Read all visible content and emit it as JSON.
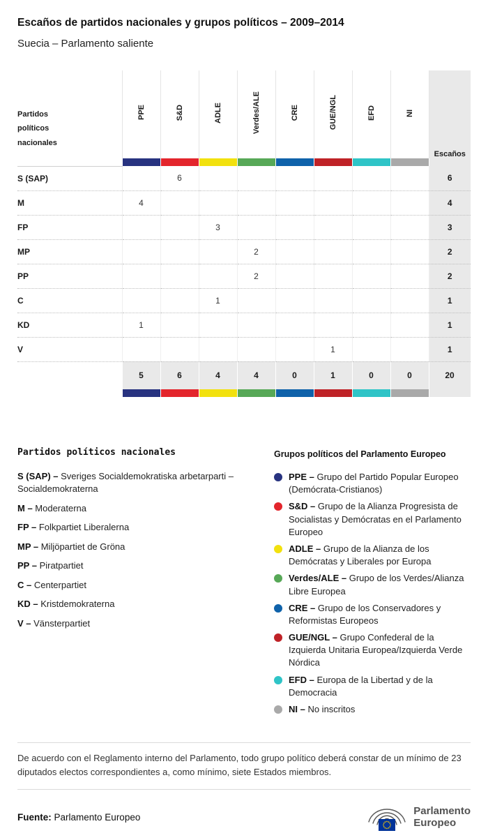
{
  "header": {
    "title": "Escaños de partidos nacionales y grupos políticos – 2009–2014",
    "subtitle": "Suecia – Parlamento saliente"
  },
  "chart_data": {
    "type": "table",
    "title": "Escaños de partidos nacionales y grupos políticos – 2009–2014",
    "subtitle": "Suecia – Parlamento saliente",
    "corner_label": "Partidos políticos nacionales",
    "seats_label": "Escaños",
    "groups": [
      {
        "label": "PPE",
        "color": "#283380"
      },
      {
        "label": "S&D",
        "color": "#e3252c"
      },
      {
        "label": "ADLE",
        "color": "#f2e10e"
      },
      {
        "label": "Verdes/ALE",
        "color": "#57a857"
      },
      {
        "label": "CRE",
        "color": "#0f62aa"
      },
      {
        "label": "GUE/NGL",
        "color": "#bf2227"
      },
      {
        "label": "EFD",
        "color": "#2fc4c7"
      },
      {
        "label": "NI",
        "color": "#a9a9a9"
      }
    ],
    "rows": [
      {
        "party": "S (SAP)",
        "values": [
          "",
          "6",
          "",
          "",
          "",
          "",
          "",
          ""
        ],
        "total": "6"
      },
      {
        "party": "M",
        "values": [
          "4",
          "",
          "",
          "",
          "",
          "",
          "",
          ""
        ],
        "total": "4"
      },
      {
        "party": "FP",
        "values": [
          "",
          "",
          "3",
          "",
          "",
          "",
          "",
          ""
        ],
        "total": "3"
      },
      {
        "party": "MP",
        "values": [
          "",
          "",
          "",
          "2",
          "",
          "",
          "",
          ""
        ],
        "total": "2"
      },
      {
        "party": "PP",
        "values": [
          "",
          "",
          "",
          "2",
          "",
          "",
          "",
          ""
        ],
        "total": "2"
      },
      {
        "party": "C",
        "values": [
          "",
          "",
          "1",
          "",
          "",
          "",
          "",
          ""
        ],
        "total": "1"
      },
      {
        "party": "KD",
        "values": [
          "1",
          "",
          "",
          "",
          "",
          "",
          "",
          ""
        ],
        "total": "1"
      },
      {
        "party": "V",
        "values": [
          "",
          "",
          "",
          "",
          "",
          "1",
          "",
          ""
        ],
        "total": "1"
      }
    ],
    "totals": {
      "values": [
        "5",
        "6",
        "4",
        "4",
        "0",
        "1",
        "0",
        "0"
      ],
      "total": "20"
    }
  },
  "legend_parties": {
    "heading": "Partidos políticos nacionales",
    "items": [
      {
        "code": "S (SAP) –",
        "text": "Sveriges Socialdemokratiska arbetarparti – Socialdemokraterna"
      },
      {
        "code": "M –",
        "text": "Moderaterna"
      },
      {
        "code": "FP –",
        "text": "Folkpartiet Liberalerna"
      },
      {
        "code": "MP –",
        "text": "Miljöpartiet de Gröna"
      },
      {
        "code": "PP –",
        "text": "Piratpartiet"
      },
      {
        "code": "C –",
        "text": "Centerpartiet"
      },
      {
        "code": "KD –",
        "text": "Kristdemokraterna"
      },
      {
        "code": "V –",
        "text": "Vänsterpartiet"
      }
    ]
  },
  "legend_groups": {
    "heading": "Grupos políticos del Parlamento Europeo",
    "items": [
      {
        "code": "PPE –",
        "text": "Grupo del Partido Popular Europeo (Demócrata-Cristianos)",
        "color": "#283380"
      },
      {
        "code": "S&D –",
        "text": "Grupo de la Alianza Progresista de Socialistas y Demócratas en el Parlamento Europeo",
        "color": "#e3252c"
      },
      {
        "code": "ADLE –",
        "text": "Grupo de la Alianza de los Demócratas y Liberales por Europa",
        "color": "#f2e10e"
      },
      {
        "code": "Verdes/ALE –",
        "text": "Grupo de los Verdes/Alianza Libre Europea",
        "color": "#57a857"
      },
      {
        "code": "CRE –",
        "text": "Grupo de los Conservadores y Reformistas Europeos",
        "color": "#0f62aa"
      },
      {
        "code": "GUE/NGL –",
        "text": "Grupo Confederal de la Izquierda Unitaria Europea/Izquierda Verde Nórdica",
        "color": "#bf2227"
      },
      {
        "code": "EFD –",
        "text": "Europa de la Libertad y de la Democracia",
        "color": "#2fc4c7"
      },
      {
        "code": "NI –",
        "text": "No inscritos",
        "color": "#a9a9a9"
      }
    ]
  },
  "footnote": "De acuerdo con el Reglamento interno del Parlamento, todo grupo político deberá constar de un mínimo de 23 diputados electos correspondientes a, como mínimo, siete Estados miembros.",
  "source": {
    "label": "Fuente:",
    "text": "Parlamento Europeo"
  },
  "logo": {
    "line1": "Parlamento",
    "line2": "Europeo"
  }
}
